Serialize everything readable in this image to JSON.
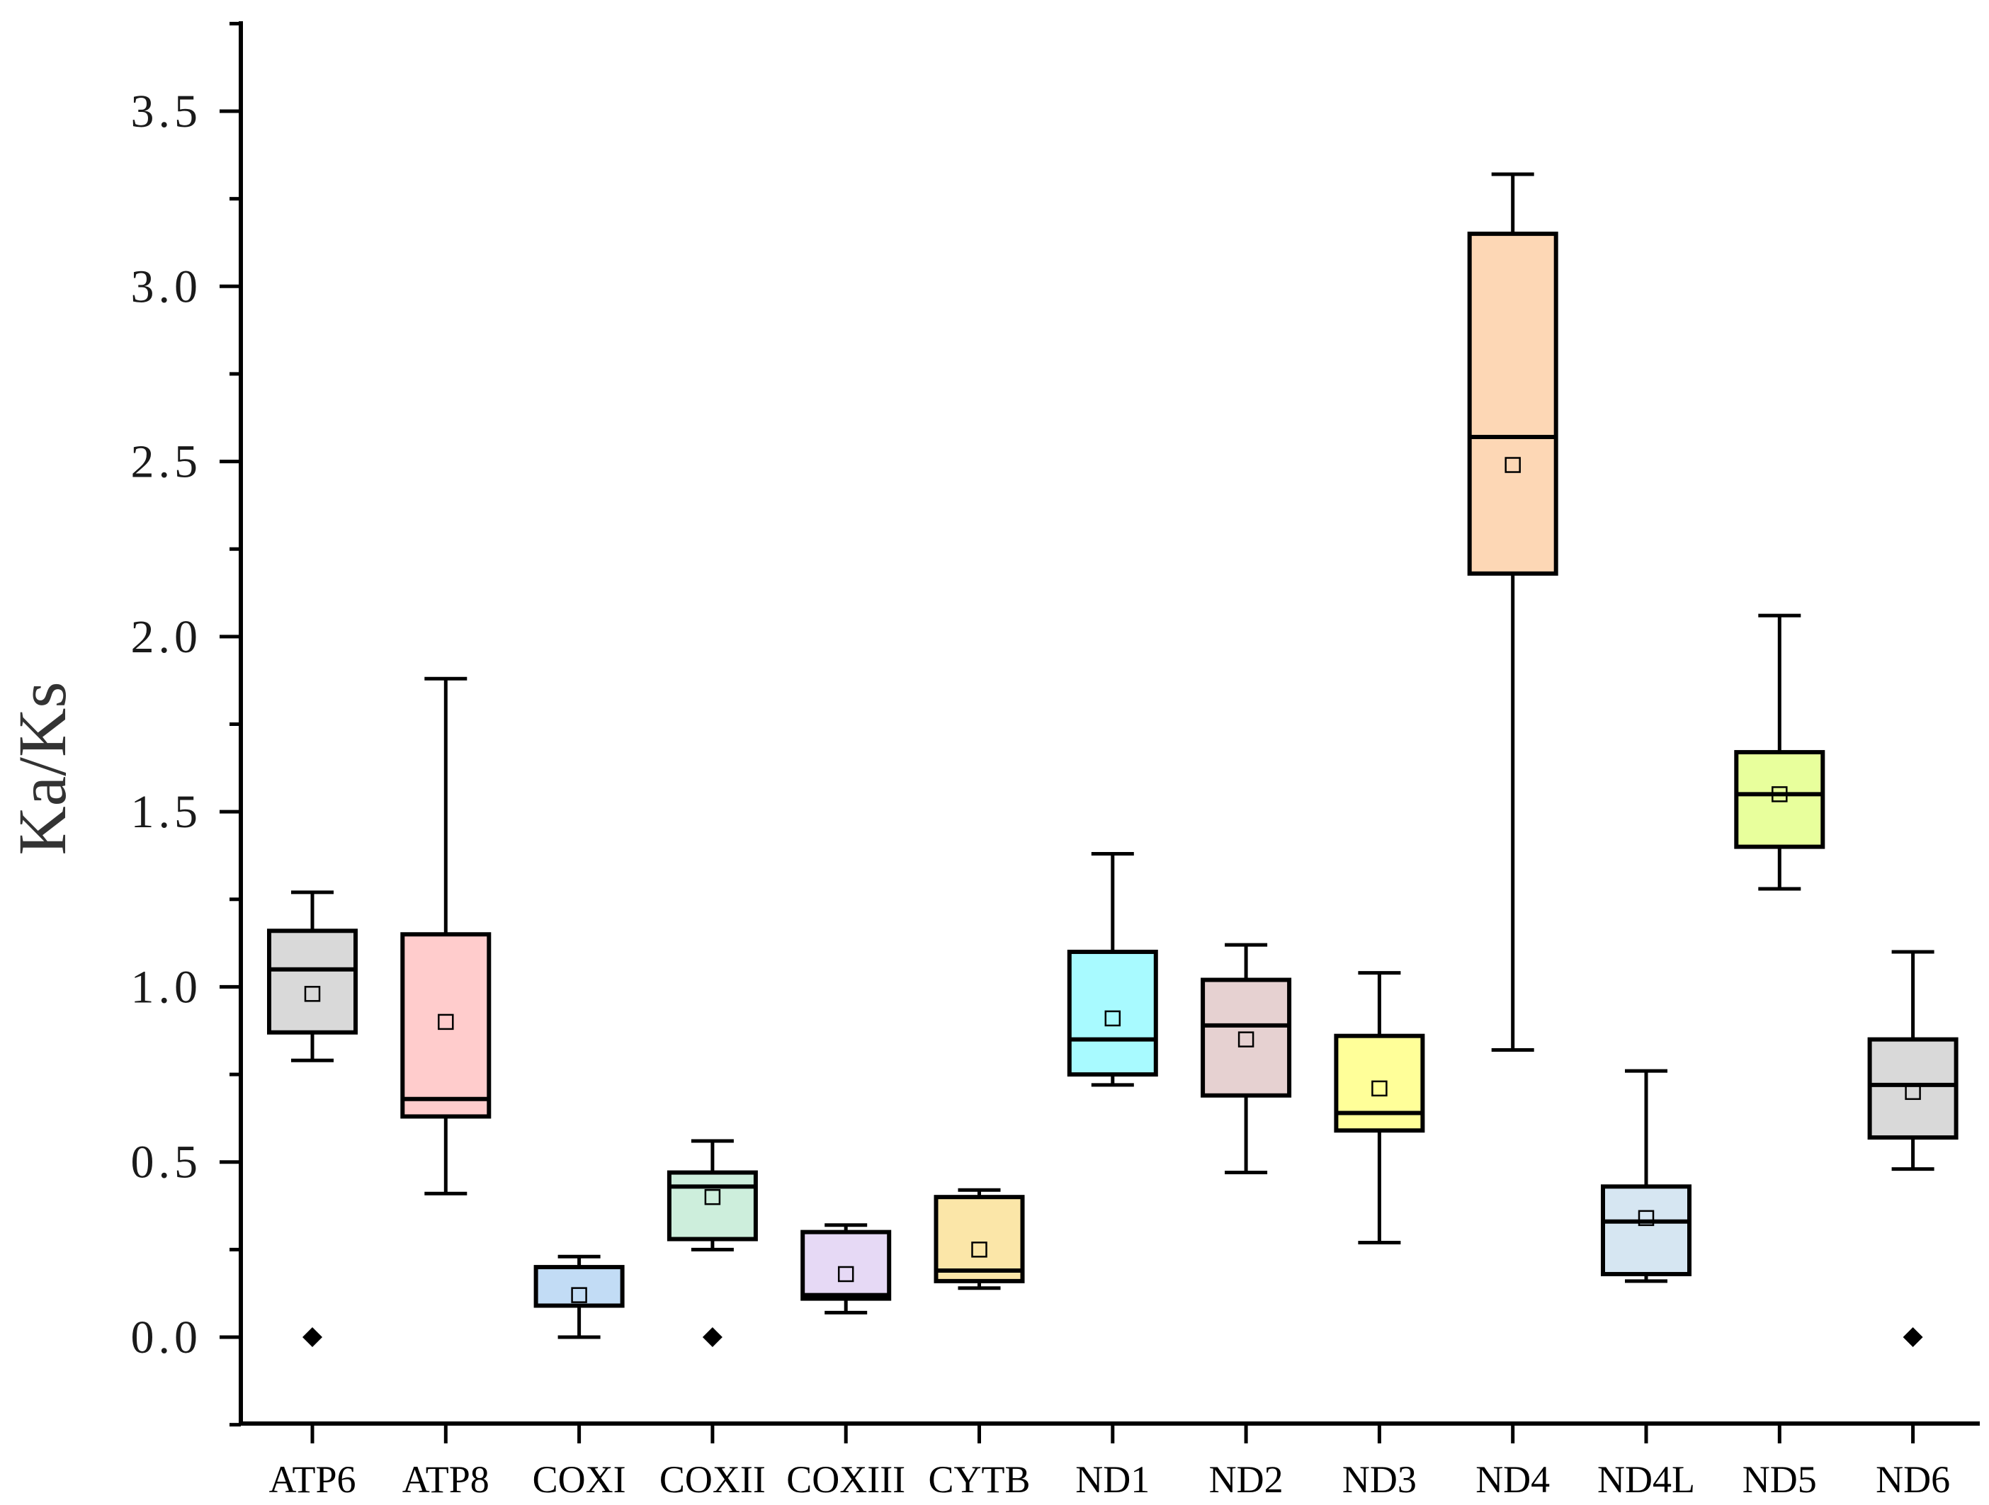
{
  "chart_data": {
    "type": "box",
    "title": "",
    "xlabel": "",
    "ylabel": "Ka/Ks",
    "ylim": [
      -0.25,
      3.75
    ],
    "yticks": [
      "0.0",
      "0.5",
      "1.0",
      "1.5",
      "2.0",
      "2.5",
      "3.0",
      "3.5"
    ],
    "grid": false,
    "legend": "none",
    "categories": [
      "ATP6",
      "ATP8",
      "COXI",
      "COXII",
      "COXIII",
      "CYTB",
      "ND1",
      "ND2",
      "ND3",
      "ND4",
      "ND4L",
      "ND5",
      "ND6"
    ],
    "boxes": [
      {
        "name": "ATP6",
        "color": "#d9d9d9",
        "whisker_low": 0.79,
        "q1": 0.87,
        "median": 1.05,
        "q3": 1.16,
        "whisker_high": 1.27,
        "mean": 0.98,
        "outliers": [
          0.0
        ]
      },
      {
        "name": "ATP8",
        "color": "#ffcccc",
        "whisker_low": 0.41,
        "q1": 0.63,
        "median": 0.68,
        "q3": 1.15,
        "whisker_high": 1.88,
        "mean": 0.9,
        "outliers": []
      },
      {
        "name": "COXI",
        "color": "#c2dcf5",
        "whisker_low": 0.0,
        "q1": 0.09,
        "median": 0.09,
        "q3": 0.2,
        "whisker_high": 0.23,
        "mean": 0.12,
        "outliers": []
      },
      {
        "name": "COXII",
        "color": "#cdeedc",
        "whisker_low": 0.25,
        "q1": 0.28,
        "median": 0.43,
        "q3": 0.47,
        "whisker_high": 0.56,
        "mean": 0.4,
        "outliers": [
          0.0
        ]
      },
      {
        "name": "COXIII",
        "color": "#e6d9f5",
        "whisker_low": 0.07,
        "q1": 0.11,
        "median": 0.12,
        "q3": 0.3,
        "whisker_high": 0.32,
        "mean": 0.18,
        "outliers": []
      },
      {
        "name": "CYTB",
        "color": "#fbe6a8",
        "whisker_low": 0.14,
        "q1": 0.16,
        "median": 0.19,
        "q3": 0.4,
        "whisker_high": 0.42,
        "mean": 0.25,
        "outliers": []
      },
      {
        "name": "ND1",
        "color": "#a8faff",
        "whisker_low": 0.72,
        "q1": 0.75,
        "median": 0.85,
        "q3": 1.1,
        "whisker_high": 1.38,
        "mean": 0.91,
        "outliers": []
      },
      {
        "name": "ND2",
        "color": "#e6d1d1",
        "whisker_low": 0.47,
        "q1": 0.69,
        "median": 0.89,
        "q3": 1.02,
        "whisker_high": 1.12,
        "mean": 0.85,
        "outliers": []
      },
      {
        "name": "ND3",
        "color": "#ffff99",
        "whisker_low": 0.27,
        "q1": 0.59,
        "median": 0.64,
        "q3": 0.86,
        "whisker_high": 1.04,
        "mean": 0.71,
        "outliers": []
      },
      {
        "name": "ND4",
        "color": "#fdd7b5",
        "whisker_low": 0.82,
        "q1": 2.18,
        "median": 2.57,
        "q3": 3.15,
        "whisker_high": 3.32,
        "mean": 2.49,
        "outliers": []
      },
      {
        "name": "ND4L",
        "color": "#d6e6f2",
        "whisker_low": 0.16,
        "q1": 0.18,
        "median": 0.33,
        "q3": 0.43,
        "whisker_high": 0.76,
        "mean": 0.34,
        "outliers": []
      },
      {
        "name": "ND5",
        "color": "#e8ff9c",
        "whisker_low": 1.28,
        "q1": 1.4,
        "median": 1.55,
        "q3": 1.67,
        "whisker_high": 2.06,
        "mean": 1.55,
        "outliers": []
      },
      {
        "name": "ND6",
        "color": "#d9d9d9",
        "whisker_low": 0.48,
        "q1": 0.57,
        "median": 0.72,
        "q3": 0.85,
        "whisker_high": 1.1,
        "mean": 0.7,
        "outliers": [
          0.0
        ]
      }
    ]
  }
}
